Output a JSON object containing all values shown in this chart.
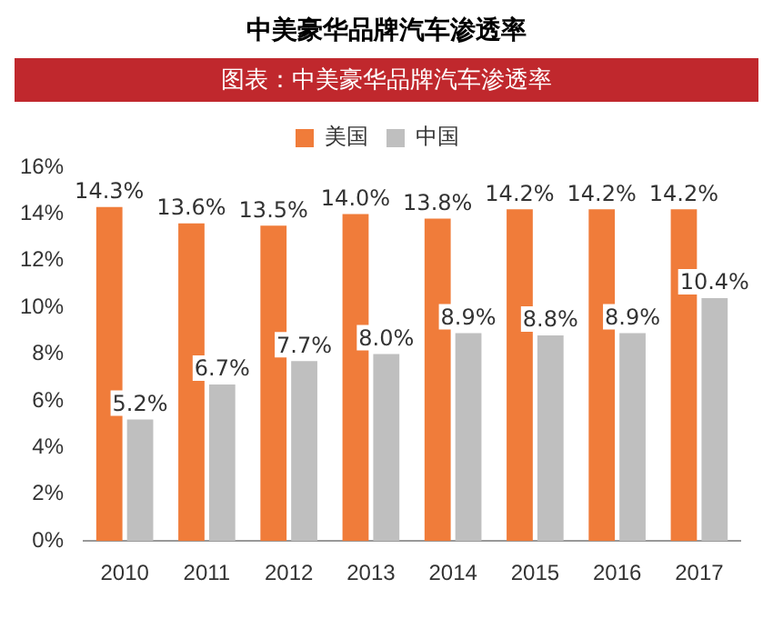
{
  "chart_data": {
    "type": "bar",
    "title": "中美豪华品牌汽车渗透率",
    "subtitle": "图表：中美豪华品牌汽车渗透率",
    "categories": [
      "2010",
      "2011",
      "2012",
      "2013",
      "2014",
      "2015",
      "2016",
      "2017"
    ],
    "series": [
      {
        "name": "美国",
        "color": "#f07c3a",
        "values": [
          14.3,
          13.6,
          13.5,
          14.0,
          13.8,
          14.2,
          14.2,
          14.2
        ],
        "value_labels": [
          "14.3%",
          "13.6%",
          "13.5%",
          "14.0%",
          "13.8%",
          "14.2%",
          "14.2%",
          "14.2%"
        ]
      },
      {
        "name": "中国",
        "color": "#bfbfbf",
        "values": [
          5.2,
          6.7,
          7.7,
          8.0,
          8.9,
          8.8,
          8.9,
          10.4
        ],
        "value_labels": [
          "5.2%",
          "6.7%",
          "7.7%",
          "8.0%",
          "8.9%",
          "8.8%",
          "8.9%",
          "10.4%"
        ]
      }
    ],
    "ylim": [
      0,
      16
    ],
    "yticks": [
      {
        "value": 0,
        "label": "0%"
      },
      {
        "value": 2,
        "label": "2%"
      },
      {
        "value": 4,
        "label": "4%"
      },
      {
        "value": 6,
        "label": "6%"
      },
      {
        "value": 8,
        "label": "8%"
      },
      {
        "value": 10,
        "label": "10%"
      },
      {
        "value": 12,
        "label": "12%"
      },
      {
        "value": 14,
        "label": "14%"
      },
      {
        "value": 16,
        "label": "16%"
      }
    ],
    "grid": false,
    "legend": "top"
  }
}
